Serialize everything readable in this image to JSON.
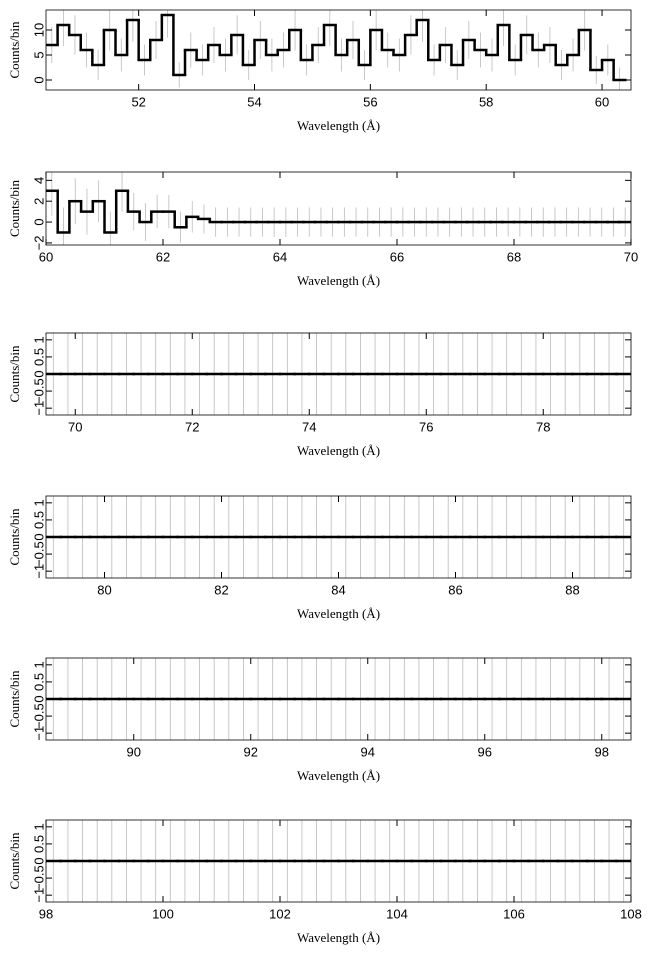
{
  "chart_data": [
    {
      "type": "step",
      "x_label": "Wavelength (Å)",
      "y_label": "Counts/bin",
      "xlim": [
        50.4,
        60.5
      ],
      "xticks": [
        52,
        54,
        56,
        58,
        60
      ],
      "ylim": [
        -2,
        14
      ],
      "yticks": [
        0,
        5,
        10
      ],
      "x": [
        50.5,
        50.7,
        50.9,
        51.1,
        51.3,
        51.5,
        51.7,
        51.9,
        52.1,
        52.3,
        52.5,
        52.7,
        52.9,
        53.1,
        53.3,
        53.5,
        53.7,
        53.9,
        54.1,
        54.3,
        54.5,
        54.7,
        54.9,
        55.1,
        55.3,
        55.5,
        55.7,
        55.9,
        56.1,
        56.3,
        56.5,
        56.7,
        56.9,
        57.1,
        57.3,
        57.5,
        57.7,
        57.9,
        58.1,
        58.3,
        58.5,
        58.7,
        58.9,
        59.1,
        59.3,
        59.5,
        59.7,
        59.9,
        60.1,
        60.3
      ],
      "values": [
        7,
        11,
        9,
        6,
        3,
        10,
        5,
        12,
        4,
        8,
        13,
        1,
        6,
        4,
        7,
        5,
        9,
        3,
        8,
        5,
        6,
        10,
        4,
        7,
        11,
        5,
        8,
        3,
        10,
        6,
        5,
        9,
        12,
        4,
        7,
        3,
        8,
        6,
        5,
        11,
        4,
        9,
        6,
        7,
        3,
        5,
        10,
        2,
        4,
        0
      ],
      "errors": [
        3.6,
        4.2,
        3.9,
        3.5,
        3,
        4.1,
        3.3,
        4.4,
        3.1,
        3.8,
        4.5,
        2.5,
        3.5,
        3.1,
        3.6,
        3.3,
        3.9,
        3,
        3.8,
        3.3,
        3.5,
        4.1,
        3.1,
        3.6,
        4.2,
        3.3,
        3.8,
        3,
        4.1,
        3.5,
        3.3,
        3.9,
        4.4,
        3.1,
        3.6,
        3,
        3.8,
        3.5,
        3.3,
        4.2,
        3.1,
        3.9,
        3.5,
        3.6,
        3,
        3.3,
        4.1,
        2.8,
        3.1,
        2.5
      ]
    },
    {
      "type": "step",
      "x_label": "Wavelength (Å)",
      "y_label": "Counts/bin",
      "xlim": [
        60,
        70
      ],
      "xticks": [
        60,
        62,
        64,
        66,
        68,
        70
      ],
      "ylim": [
        -2.2,
        4.8
      ],
      "yticks": [
        {
          "value": -2,
          "label": "−2"
        },
        0,
        2,
        4
      ],
      "x": [
        60.1,
        60.3,
        60.5,
        60.7,
        60.9,
        61.1,
        61.3,
        61.5,
        61.7,
        61.9,
        62.1,
        62.3,
        62.5,
        62.7,
        62.9,
        63.1,
        63.3,
        63.5,
        63.7,
        63.9,
        64.1,
        64.3,
        64.5,
        64.7,
        64.9,
        65.1,
        65.3,
        65.5,
        65.7,
        65.9,
        66.1,
        66.3,
        66.5,
        66.7,
        66.9,
        67.1,
        67.3,
        67.5,
        67.7,
        67.9,
        68.1,
        68.3,
        68.5,
        68.7,
        68.9,
        69.1,
        69.3,
        69.5,
        69.7,
        69.9
      ],
      "values": [
        3,
        -1,
        2,
        1,
        2,
        -1,
        3,
        1,
        0,
        1,
        1,
        -0.5,
        0.5,
        0.3,
        0,
        0,
        0,
        0,
        0,
        0,
        0,
        0,
        0,
        0,
        0,
        0,
        0,
        0,
        0,
        0,
        0,
        0,
        0,
        0,
        0,
        0,
        0,
        0,
        0,
        0,
        0,
        0,
        0,
        0,
        0,
        0,
        0,
        0,
        0,
        0
      ],
      "errors": [
        2.4,
        2.4,
        2.2,
        2.2,
        2,
        2,
        2,
        1.8,
        1.8,
        1.6,
        1.6,
        1.5,
        1.5,
        1.4,
        1.4,
        1.4,
        1.4,
        1.4,
        1.4,
        1.4,
        1.4,
        1.4,
        1.4,
        1.4,
        1.4,
        1.4,
        1.4,
        1.4,
        1.4,
        1.4,
        1.4,
        1.4,
        1.4,
        1.4,
        1.4,
        1.4,
        1.4,
        1.4,
        1.4,
        1.4,
        1.4,
        1.4,
        1.4,
        1.4,
        1.4,
        1.4,
        1.4,
        1.4,
        1.4,
        1.4
      ]
    },
    {
      "type": "step",
      "x_label": "Wavelength (Å)",
      "y_label": "Counts/bin",
      "xlim": [
        69.5,
        79.5
      ],
      "xticks": [
        70,
        72,
        74,
        76,
        78
      ],
      "ylim": [
        -1.2,
        1.2
      ],
      "yticks": [
        {
          "value": -1,
          "label": "−1"
        },
        {
          "value": -0.5,
          "label": "−0.5"
        },
        0,
        0.5,
        1
      ],
      "x": [
        69.625,
        69.875,
        70.125,
        70.375,
        70.625,
        70.875,
        71.125,
        71.375,
        71.625,
        71.875,
        72.125,
        72.375,
        72.625,
        72.875,
        73.125,
        73.375,
        73.625,
        73.875,
        74.125,
        74.375,
        74.625,
        74.875,
        75.125,
        75.375,
        75.625,
        75.875,
        76.125,
        76.375,
        76.625,
        76.875,
        77.125,
        77.375,
        77.625,
        77.875,
        78.125,
        78.375,
        78.625,
        78.875,
        79.125,
        79.375
      ],
      "values": [
        0,
        0,
        0,
        0,
        0,
        0,
        0,
        0,
        0,
        0,
        0,
        0,
        0,
        0,
        0,
        0,
        0,
        0,
        0,
        0,
        0,
        0,
        0,
        0,
        0,
        0,
        0,
        0,
        0,
        0,
        0,
        0,
        0,
        0,
        0,
        0,
        0,
        0,
        0,
        0
      ],
      "errors": [
        1.4,
        1.4,
        1.4,
        1.4,
        1.4,
        1.4,
        1.4,
        1.4,
        1.4,
        1.4,
        1.4,
        1.4,
        1.4,
        1.4,
        1.4,
        1.4,
        1.4,
        1.4,
        1.4,
        1.4,
        1.4,
        1.4,
        1.4,
        1.4,
        1.4,
        1.4,
        1.4,
        1.4,
        1.4,
        1.4,
        1.4,
        1.4,
        1.4,
        1.4,
        1.4,
        1.4,
        1.4,
        1.4,
        1.4,
        1.4
      ]
    },
    {
      "type": "step",
      "x_label": "Wavelength (Å)",
      "y_label": "Counts/bin",
      "xlim": [
        79,
        89
      ],
      "xticks": [
        80,
        82,
        84,
        86,
        88
      ],
      "ylim": [
        -1.2,
        1.2
      ],
      "yticks": [
        {
          "value": -1,
          "label": "−1"
        },
        {
          "value": -0.5,
          "label": "−0.5"
        },
        0,
        0.5,
        1
      ],
      "x": [
        79.125,
        79.375,
        79.625,
        79.875,
        80.125,
        80.375,
        80.625,
        80.875,
        81.125,
        81.375,
        81.625,
        81.875,
        82.125,
        82.375,
        82.625,
        82.875,
        83.125,
        83.375,
        83.625,
        83.875,
        84.125,
        84.375,
        84.625,
        84.875,
        85.125,
        85.375,
        85.625,
        85.875,
        86.125,
        86.375,
        86.625,
        86.875,
        87.125,
        87.375,
        87.625,
        87.875,
        88.125,
        88.375,
        88.625,
        88.875
      ],
      "values": [
        0,
        0,
        0,
        0,
        0,
        0,
        0,
        0,
        0,
        0,
        0,
        0,
        0,
        0,
        0,
        0,
        0,
        0,
        0,
        0,
        0,
        0,
        0,
        0,
        0,
        0,
        0,
        0,
        0,
        0,
        0,
        0,
        0,
        0,
        0,
        0,
        0,
        0,
        0,
        0
      ],
      "errors": [
        1.4,
        1.4,
        1.4,
        1.4,
        1.4,
        1.4,
        1.4,
        1.4,
        1.4,
        1.4,
        1.4,
        1.4,
        1.4,
        1.4,
        1.4,
        1.4,
        1.4,
        1.4,
        1.4,
        1.4,
        1.4,
        1.4,
        1.4,
        1.4,
        1.4,
        1.4,
        1.4,
        1.4,
        1.4,
        1.4,
        1.4,
        1.4,
        1.4,
        1.4,
        1.4,
        1.4,
        1.4,
        1.4,
        1.4,
        1.4
      ]
    },
    {
      "type": "step",
      "x_label": "Wavelength (Å)",
      "y_label": "Counts/bin",
      "xlim": [
        88.5,
        98.5
      ],
      "xticks": [
        90,
        92,
        94,
        96,
        98
      ],
      "ylim": [
        -1.2,
        1.2
      ],
      "yticks": [
        {
          "value": -1,
          "label": "−1"
        },
        {
          "value": -0.5,
          "label": "−0.5"
        },
        0,
        0.5,
        1
      ],
      "x": [
        88.625,
        88.875,
        89.125,
        89.375,
        89.625,
        89.875,
        90.125,
        90.375,
        90.625,
        90.875,
        91.125,
        91.375,
        91.625,
        91.875,
        92.125,
        92.375,
        92.625,
        92.875,
        93.125,
        93.375,
        93.625,
        93.875,
        94.125,
        94.375,
        94.625,
        94.875,
        95.125,
        95.375,
        95.625,
        95.875,
        96.125,
        96.375,
        96.625,
        96.875,
        97.125,
        97.375,
        97.625,
        97.875,
        98.125,
        98.375
      ],
      "values": [
        0,
        0,
        0,
        0,
        0,
        0,
        0,
        0,
        0,
        0,
        0,
        0,
        0,
        0,
        0,
        0,
        0,
        0,
        0,
        0,
        0,
        0,
        0,
        0,
        0,
        0,
        0,
        0,
        0,
        0,
        0,
        0,
        0,
        0,
        0,
        0,
        0,
        0,
        0,
        0
      ],
      "errors": [
        1.4,
        1.4,
        1.4,
        1.4,
        1.4,
        1.4,
        1.4,
        1.4,
        1.4,
        1.4,
        1.4,
        1.4,
        1.4,
        1.4,
        1.4,
        1.4,
        1.4,
        1.4,
        1.4,
        1.4,
        1.4,
        1.4,
        1.4,
        1.4,
        1.4,
        1.4,
        1.4,
        1.4,
        1.4,
        1.4,
        1.4,
        1.4,
        1.4,
        1.4,
        1.4,
        1.4,
        1.4,
        1.4,
        1.4,
        1.4
      ]
    },
    {
      "type": "step",
      "x_label": "Wavelength (Å)",
      "y_label": "Counts/bin",
      "xlim": [
        98,
        108
      ],
      "xticks": [
        98,
        100,
        102,
        104,
        106,
        108
      ],
      "ylim": [
        -1.2,
        1.2
      ],
      "yticks": [
        {
          "value": -1,
          "label": "−1"
        },
        {
          "value": -0.5,
          "label": "−0.5"
        },
        0,
        0.5,
        1
      ],
      "x": [
        98.125,
        98.375,
        98.625,
        98.875,
        99.125,
        99.375,
        99.625,
        99.875,
        100.125,
        100.375,
        100.625,
        100.875,
        101.125,
        101.375,
        101.625,
        101.875,
        102.125,
        102.375,
        102.625,
        102.875,
        103.125,
        103.375,
        103.625,
        103.875,
        104.125,
        104.375,
        104.625,
        104.875,
        105.125,
        105.375,
        105.625,
        105.875,
        106.125,
        106.375,
        106.625,
        106.875,
        107.125,
        107.375,
        107.625,
        107.875
      ],
      "values": [
        0,
        0,
        0,
        0,
        0,
        0,
        0,
        0,
        0,
        0,
        0,
        0,
        0,
        0,
        0,
        0,
        0,
        0,
        0,
        0,
        0,
        0,
        0,
        0,
        0,
        0,
        0,
        0,
        0,
        0,
        0,
        0,
        0,
        0,
        0,
        0,
        0,
        0,
        0,
        0
      ],
      "errors": [
        1.4,
        1.4,
        1.4,
        1.4,
        1.4,
        1.4,
        1.4,
        1.4,
        1.4,
        1.4,
        1.4,
        1.4,
        1.4,
        1.4,
        1.4,
        1.4,
        1.4,
        1.4,
        1.4,
        1.4,
        1.4,
        1.4,
        1.4,
        1.4,
        1.4,
        1.4,
        1.4,
        1.4,
        1.4,
        1.4,
        1.4,
        1.4,
        1.4,
        1.4,
        1.4,
        1.4,
        1.4,
        1.4,
        1.4,
        1.4
      ]
    }
  ]
}
